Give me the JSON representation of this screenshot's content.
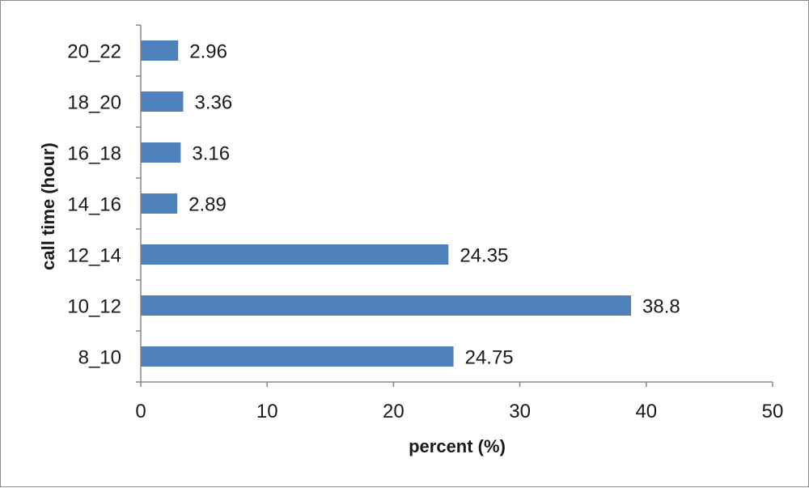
{
  "chart_data": {
    "type": "bar",
    "orientation": "horizontal",
    "categories": [
      "8_10",
      "10_12",
      "12_14",
      "14_16",
      "16_18",
      "18_20",
      "20_22"
    ],
    "values": [
      24.75,
      38.8,
      24.35,
      2.89,
      3.16,
      3.36,
      2.96
    ],
    "value_labels": [
      "24.75",
      "38.8",
      "24.35",
      "2.89",
      "3.16",
      "3.36",
      "2.96"
    ],
    "xlabel": "percent (%)",
    "ylabel": "call time (hour)",
    "xlim": [
      0,
      50
    ],
    "xticks": [
      0,
      10,
      20,
      30,
      40,
      50
    ],
    "grid": false,
    "legend": "none",
    "bar_color": "#4f81bd"
  }
}
